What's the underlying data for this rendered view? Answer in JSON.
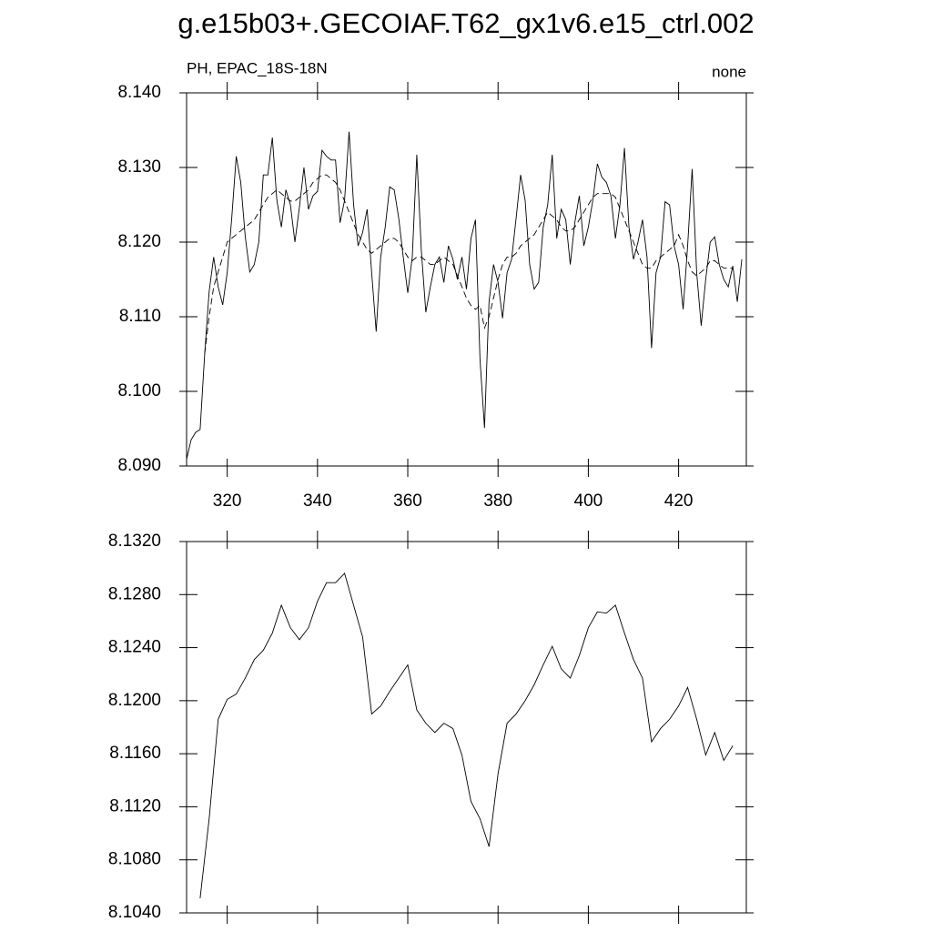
{
  "title": "g.e15b03+.GECOIAF.T62_gx1v6.e15_ctrl.002",
  "chart_data": [
    {
      "type": "line",
      "left_label": "PH, EPAC_18S-18N",
      "right_label": "none",
      "x": [
        311,
        312,
        313,
        314,
        315,
        316,
        317,
        318,
        319,
        320,
        321,
        322,
        323,
        324,
        325,
        326,
        327,
        328,
        329,
        330,
        331,
        332,
        333,
        334,
        335,
        336,
        337,
        338,
        339,
        340,
        341,
        342,
        343,
        344,
        345,
        346,
        347,
        348,
        349,
        350,
        351,
        352,
        353,
        354,
        355,
        356,
        357,
        358,
        359,
        360,
        361,
        362,
        363,
        364,
        365,
        366,
        367,
        368,
        369,
        370,
        371,
        372,
        373,
        374,
        375,
        376,
        377,
        378,
        379,
        380,
        381,
        382,
        383,
        384,
        385,
        386,
        387,
        388,
        389,
        390,
        391,
        392,
        393,
        394,
        395,
        396,
        397,
        398,
        399,
        400,
        401,
        402,
        403,
        404,
        405,
        406,
        407,
        408,
        409,
        410,
        411,
        412,
        413,
        414,
        415,
        416,
        417,
        418,
        419,
        420,
        421,
        422,
        423,
        424,
        425,
        426,
        427,
        428,
        429,
        430,
        431,
        432,
        433,
        434
      ],
      "series": [
        {
          "color": "#000000",
          "style": "solid",
          "values": [
            8.0909,
            8.0935,
            8.0945,
            8.0949,
            8.1049,
            8.1134,
            8.118,
            8.114,
            8.1116,
            8.1159,
            8.1232,
            8.1315,
            8.128,
            8.1207,
            8.116,
            8.117,
            8.12,
            8.129,
            8.129,
            8.134,
            8.1256,
            8.122,
            8.127,
            8.125,
            8.12,
            8.1247,
            8.13,
            8.1244,
            8.1262,
            8.1268,
            8.1323,
            8.1315,
            8.131,
            8.131,
            8.1226,
            8.1256,
            8.1348,
            8.125,
            8.1195,
            8.1213,
            8.1244,
            8.1159,
            8.108,
            8.118,
            8.122,
            8.1274,
            8.127,
            8.1232,
            8.118,
            8.1132,
            8.118,
            8.1317,
            8.1189,
            8.1106,
            8.114,
            8.117,
            8.118,
            8.1146,
            8.1195,
            8.1177,
            8.115,
            8.118,
            8.1137,
            8.1205,
            8.123,
            8.1043,
            8.0951,
            8.112,
            8.117,
            8.1146,
            8.1098,
            8.1159,
            8.1177,
            8.1232,
            8.129,
            8.1256,
            8.117,
            8.1137,
            8.1146,
            8.122,
            8.125,
            8.1317,
            8.1205,
            8.1244,
            8.123,
            8.117,
            8.1226,
            8.1262,
            8.1195,
            8.122,
            8.1256,
            8.1305,
            8.1287,
            8.128,
            8.1262,
            8.1205,
            8.125,
            8.1326,
            8.122,
            8.1177,
            8.12,
            8.123,
            8.118,
            8.1058,
            8.1159,
            8.118,
            8.1254,
            8.125,
            8.1195,
            8.117,
            8.111,
            8.1195,
            8.1298,
            8.1159,
            8.1088,
            8.115,
            8.12,
            8.1207,
            8.117,
            8.115,
            8.114,
            8.1168,
            8.112,
            8.1177
          ]
        },
        {
          "color": "#000000",
          "style": "dashed",
          "values": [
            null,
            null,
            null,
            null,
            8.105,
            8.11,
            8.114,
            8.116,
            8.118,
            8.12,
            8.1205,
            8.121,
            8.1215,
            8.122,
            8.1225,
            8.123,
            8.124,
            8.125,
            8.126,
            8.1265,
            8.127,
            8.1265,
            8.126,
            8.1255,
            8.1255,
            8.126,
            8.1265,
            8.127,
            8.128,
            8.1285,
            8.129,
            8.129,
            8.1285,
            8.128,
            8.127,
            8.1255,
            8.124,
            8.1225,
            8.121,
            8.12,
            8.119,
            8.1185,
            8.119,
            8.1195,
            8.12,
            8.1205,
            8.1205,
            8.12,
            8.119,
            8.118,
            8.1175,
            8.118,
            8.118,
            8.1175,
            8.117,
            8.117,
            8.1175,
            8.118,
            8.1175,
            8.117,
            8.1155,
            8.114,
            8.1125,
            8.1115,
            8.111,
            8.1115,
            8.1085,
            8.11,
            8.1125,
            8.115,
            8.117,
            8.118,
            8.118,
            8.1185,
            8.1195,
            8.12,
            8.1205,
            8.121,
            8.122,
            8.123,
            8.124,
            8.1235,
            8.123,
            8.122,
            8.1215,
            8.1215,
            8.122,
            8.123,
            8.124,
            8.125,
            8.126,
            8.1265,
            8.1265,
            8.1265,
            8.1265,
            8.126,
            8.1245,
            8.123,
            8.1215,
            8.12,
            8.1185,
            8.117,
            8.1165,
            8.1165,
            8.1175,
            8.118,
            8.1185,
            8.119,
            8.1195,
            8.121,
            8.1195,
            8.1175,
            8.116,
            8.1155,
            8.116,
            8.1165,
            8.1175,
            8.1175,
            8.117,
            8.1165,
            8.1165,
            8.1165,
            null,
            null
          ]
        }
      ],
      "xlim": [
        311,
        435
      ],
      "xticks": [
        320,
        340,
        360,
        380,
        400,
        420
      ],
      "ylim": [
        8.09,
        8.14
      ],
      "yticks": [
        {
          "value": 8.09,
          "label": "8.090"
        },
        {
          "value": 8.1,
          "label": "8.100"
        },
        {
          "value": 8.11,
          "label": "8.110"
        },
        {
          "value": 8.12,
          "label": "8.120"
        },
        {
          "value": 8.13,
          "label": "8.130"
        },
        {
          "value": 8.14,
          "label": "8.140"
        }
      ]
    },
    {
      "type": "line",
      "x": [
        314,
        316,
        318,
        320,
        322,
        324,
        326,
        328,
        330,
        332,
        334,
        336,
        338,
        340,
        342,
        344,
        346,
        348,
        350,
        352,
        354,
        356,
        358,
        360,
        362,
        364,
        366,
        368,
        370,
        372,
        374,
        376,
        378,
        380,
        382,
        384,
        386,
        388,
        390,
        392,
        394,
        396,
        398,
        400,
        402,
        404,
        406,
        408,
        410,
        412,
        414,
        416,
        418,
        420,
        422,
        424,
        426,
        428,
        430,
        432
      ],
      "series": [
        {
          "color": "#000000",
          "style": "solid",
          "values": [
            8.1051,
            8.1111,
            8.1186,
            8.1201,
            8.1205,
            8.1217,
            8.1231,
            8.1238,
            8.1251,
            8.1272,
            8.1255,
            8.1246,
            8.1255,
            8.1275,
            8.1289,
            8.1289,
            8.1296,
            8.1272,
            8.1248,
            8.119,
            8.1196,
            8.1207,
            8.1217,
            8.1227,
            8.1193,
            8.1183,
            8.1176,
            8.1183,
            8.1179,
            8.1159,
            8.1124,
            8.1111,
            8.109,
            8.1145,
            8.1183,
            8.119,
            8.12,
            8.1212,
            8.1227,
            8.1241,
            8.1224,
            8.1217,
            8.1234,
            8.1255,
            8.1267,
            8.1266,
            8.1272,
            8.1251,
            8.1231,
            8.1217,
            8.1169,
            8.1179,
            8.1186,
            8.1196,
            8.121,
            8.1186,
            8.1159,
            8.1176,
            8.1155,
            8.1166
          ]
        }
      ],
      "xlim": [
        311,
        435
      ],
      "ylim": [
        8.104,
        8.132
      ],
      "yticks": [
        {
          "value": 8.104,
          "label": "8.1040"
        },
        {
          "value": 8.108,
          "label": "8.1080"
        },
        {
          "value": 8.112,
          "label": "8.1120"
        },
        {
          "value": 8.116,
          "label": "8.1160"
        },
        {
          "value": 8.12,
          "label": "8.1200"
        },
        {
          "value": 8.124,
          "label": "8.1240"
        },
        {
          "value": 8.128,
          "label": "8.1280"
        },
        {
          "value": 8.132,
          "label": "8.1320"
        }
      ]
    }
  ]
}
